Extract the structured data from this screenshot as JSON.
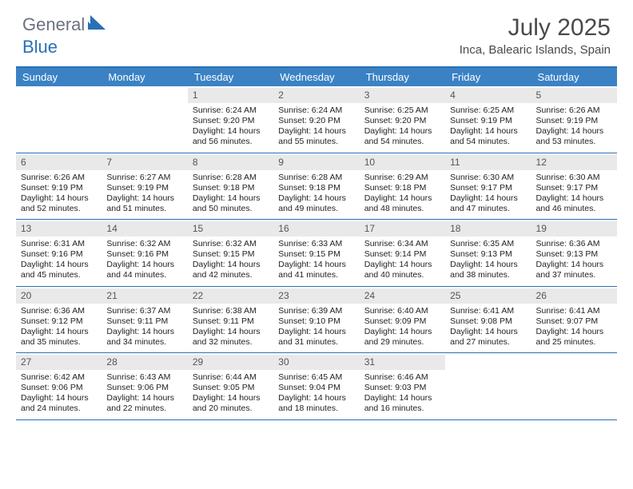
{
  "brand": {
    "word1": "General",
    "word2": "Blue"
  },
  "colors": {
    "brand_blue": "#2a6fb5",
    "header_row": "#3b82c4",
    "daynum_bg": "#e9e9e9",
    "text": "#4a4a4a"
  },
  "title": "July 2025",
  "location": "Inca, Balearic Islands, Spain",
  "day_headers": [
    "Sunday",
    "Monday",
    "Tuesday",
    "Wednesday",
    "Thursday",
    "Friday",
    "Saturday"
  ],
  "weeks": [
    [
      null,
      null,
      {
        "n": 1,
        "sunrise": "6:24 AM",
        "sunset": "9:20 PM",
        "daylight": "14 hours and 56 minutes."
      },
      {
        "n": 2,
        "sunrise": "6:24 AM",
        "sunset": "9:20 PM",
        "daylight": "14 hours and 55 minutes."
      },
      {
        "n": 3,
        "sunrise": "6:25 AM",
        "sunset": "9:20 PM",
        "daylight": "14 hours and 54 minutes."
      },
      {
        "n": 4,
        "sunrise": "6:25 AM",
        "sunset": "9:19 PM",
        "daylight": "14 hours and 54 minutes."
      },
      {
        "n": 5,
        "sunrise": "6:26 AM",
        "sunset": "9:19 PM",
        "daylight": "14 hours and 53 minutes."
      }
    ],
    [
      {
        "n": 6,
        "sunrise": "6:26 AM",
        "sunset": "9:19 PM",
        "daylight": "14 hours and 52 minutes."
      },
      {
        "n": 7,
        "sunrise": "6:27 AM",
        "sunset": "9:19 PM",
        "daylight": "14 hours and 51 minutes."
      },
      {
        "n": 8,
        "sunrise": "6:28 AM",
        "sunset": "9:18 PM",
        "daylight": "14 hours and 50 minutes."
      },
      {
        "n": 9,
        "sunrise": "6:28 AM",
        "sunset": "9:18 PM",
        "daylight": "14 hours and 49 minutes."
      },
      {
        "n": 10,
        "sunrise": "6:29 AM",
        "sunset": "9:18 PM",
        "daylight": "14 hours and 48 minutes."
      },
      {
        "n": 11,
        "sunrise": "6:30 AM",
        "sunset": "9:17 PM",
        "daylight": "14 hours and 47 minutes."
      },
      {
        "n": 12,
        "sunrise": "6:30 AM",
        "sunset": "9:17 PM",
        "daylight": "14 hours and 46 minutes."
      }
    ],
    [
      {
        "n": 13,
        "sunrise": "6:31 AM",
        "sunset": "9:16 PM",
        "daylight": "14 hours and 45 minutes."
      },
      {
        "n": 14,
        "sunrise": "6:32 AM",
        "sunset": "9:16 PM",
        "daylight": "14 hours and 44 minutes."
      },
      {
        "n": 15,
        "sunrise": "6:32 AM",
        "sunset": "9:15 PM",
        "daylight": "14 hours and 42 minutes."
      },
      {
        "n": 16,
        "sunrise": "6:33 AM",
        "sunset": "9:15 PM",
        "daylight": "14 hours and 41 minutes."
      },
      {
        "n": 17,
        "sunrise": "6:34 AM",
        "sunset": "9:14 PM",
        "daylight": "14 hours and 40 minutes."
      },
      {
        "n": 18,
        "sunrise": "6:35 AM",
        "sunset": "9:13 PM",
        "daylight": "14 hours and 38 minutes."
      },
      {
        "n": 19,
        "sunrise": "6:36 AM",
        "sunset": "9:13 PM",
        "daylight": "14 hours and 37 minutes."
      }
    ],
    [
      {
        "n": 20,
        "sunrise": "6:36 AM",
        "sunset": "9:12 PM",
        "daylight": "14 hours and 35 minutes."
      },
      {
        "n": 21,
        "sunrise": "6:37 AM",
        "sunset": "9:11 PM",
        "daylight": "14 hours and 34 minutes."
      },
      {
        "n": 22,
        "sunrise": "6:38 AM",
        "sunset": "9:11 PM",
        "daylight": "14 hours and 32 minutes."
      },
      {
        "n": 23,
        "sunrise": "6:39 AM",
        "sunset": "9:10 PM",
        "daylight": "14 hours and 31 minutes."
      },
      {
        "n": 24,
        "sunrise": "6:40 AM",
        "sunset": "9:09 PM",
        "daylight": "14 hours and 29 minutes."
      },
      {
        "n": 25,
        "sunrise": "6:41 AM",
        "sunset": "9:08 PM",
        "daylight": "14 hours and 27 minutes."
      },
      {
        "n": 26,
        "sunrise": "6:41 AM",
        "sunset": "9:07 PM",
        "daylight": "14 hours and 25 minutes."
      }
    ],
    [
      {
        "n": 27,
        "sunrise": "6:42 AM",
        "sunset": "9:06 PM",
        "daylight": "14 hours and 24 minutes."
      },
      {
        "n": 28,
        "sunrise": "6:43 AM",
        "sunset": "9:06 PM",
        "daylight": "14 hours and 22 minutes."
      },
      {
        "n": 29,
        "sunrise": "6:44 AM",
        "sunset": "9:05 PM",
        "daylight": "14 hours and 20 minutes."
      },
      {
        "n": 30,
        "sunrise": "6:45 AM",
        "sunset": "9:04 PM",
        "daylight": "14 hours and 18 minutes."
      },
      {
        "n": 31,
        "sunrise": "6:46 AM",
        "sunset": "9:03 PM",
        "daylight": "14 hours and 16 minutes."
      },
      null,
      null
    ]
  ],
  "labels": {
    "sunrise": "Sunrise:",
    "sunset": "Sunset:",
    "daylight": "Daylight:"
  }
}
